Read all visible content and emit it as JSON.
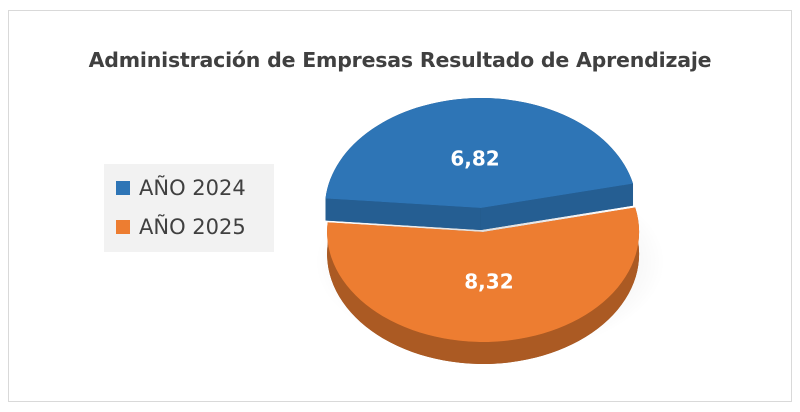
{
  "chart_data": {
    "type": "pie",
    "title": "Administración de Empresas Resultado de Aprendizaje",
    "categories": [
      "AÑO 2024",
      "AÑO 2025"
    ],
    "values": [
      6.82,
      8.32
    ],
    "value_labels": [
      "6,82",
      "8,32"
    ],
    "colors": [
      "#2e75b6",
      "#ed7d31"
    ],
    "legend_position": "left",
    "style": "3d-exploded"
  }
}
